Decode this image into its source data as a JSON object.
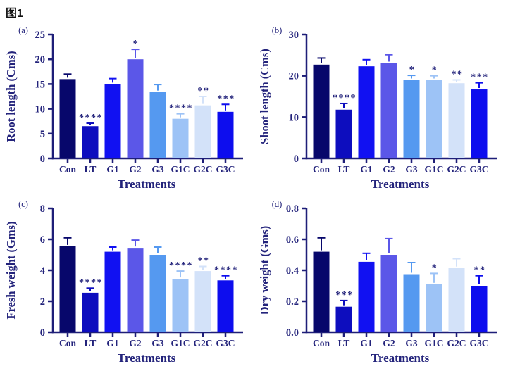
{
  "figure_label": "图1",
  "colors": {
    "text": "#23237b",
    "axis": "#1e1e78",
    "stars": "#23237b",
    "bars": [
      "#07076b",
      "#0d0dbe",
      "#1111f2",
      "#5b57e8",
      "#5599f0",
      "#9dc3f6",
      "#d3e2f9",
      "#0d0dee"
    ]
  },
  "chart_data": [
    {
      "type": "bar",
      "panel": "(a)",
      "ylabel": "Root length (Cms)",
      "xlabel": "Treatments",
      "ylim": [
        0,
        25
      ],
      "yticks": [
        "0",
        "5",
        "10",
        "15",
        "20",
        "25"
      ],
      "grid": false,
      "legend": "none",
      "categories": [
        "Con",
        "LT",
        "G1",
        "G2",
        "G3",
        "G1C",
        "G2C",
        "G3C"
      ],
      "values": [
        16,
        6.5,
        15,
        20,
        13.4,
        8,
        10.7,
        9.4
      ],
      "errors": [
        1,
        0.6,
        1.1,
        2,
        1.5,
        1,
        1.8,
        1.5
      ],
      "sig": [
        "",
        "****",
        "",
        "*",
        "",
        "****",
        "**",
        "***"
      ]
    },
    {
      "type": "bar",
      "panel": "(b)",
      "ylabel": "Shoot length (Cms)",
      "xlabel": "Treatments",
      "ylim": [
        0,
        30
      ],
      "yticks": [
        "0",
        "10",
        "20",
        "30"
      ],
      "grid": false,
      "legend": "none",
      "categories": [
        "Con",
        "LT",
        "G1",
        "G2",
        "G3",
        "G1C",
        "G2C",
        "G3C"
      ],
      "values": [
        22.7,
        11.8,
        22.3,
        23.1,
        19,
        19,
        18.2,
        16.7
      ],
      "errors": [
        1.6,
        1.5,
        1.6,
        2,
        1.1,
        1,
        0.8,
        1.6
      ],
      "sig": [
        "",
        "****",
        "",
        "",
        "*",
        "*",
        "**",
        "***"
      ]
    },
    {
      "type": "bar",
      "panel": "(c)",
      "ylabel": "Fresh weight (Gms)",
      "xlabel": "Treatments",
      "ylim": [
        0,
        8
      ],
      "yticks": [
        "0",
        "2",
        "4",
        "6",
        "8"
      ],
      "grid": false,
      "legend": "none",
      "categories": [
        "Con",
        "LT",
        "G1",
        "G2",
        "G3",
        "G1C",
        "G2C",
        "G3C"
      ],
      "values": [
        5.55,
        2.55,
        5.2,
        5.45,
        5.0,
        3.45,
        3.95,
        3.35
      ],
      "errors": [
        0.55,
        0.3,
        0.3,
        0.5,
        0.5,
        0.5,
        0.3,
        0.3
      ],
      "sig": [
        "",
        "****",
        "",
        "",
        "",
        "****",
        "**",
        "****"
      ]
    },
    {
      "type": "bar",
      "panel": "(d)",
      "ylabel": "Dry weight (Gms)",
      "xlabel": "Treatments",
      "ylim": [
        0,
        0.8
      ],
      "yticks": [
        "0.0",
        "0.2",
        "0.4",
        "0.6",
        "0.8"
      ],
      "grid": false,
      "legend": "none",
      "categories": [
        "Con",
        "LT",
        "G1",
        "G2",
        "G3",
        "G1C",
        "G2C",
        "G3C"
      ],
      "values": [
        0.52,
        0.165,
        0.455,
        0.5,
        0.375,
        0.31,
        0.415,
        0.3
      ],
      "errors": [
        0.09,
        0.04,
        0.055,
        0.105,
        0.075,
        0.07,
        0.06,
        0.065
      ],
      "sig": [
        "",
        "***",
        "",
        "",
        "",
        "*",
        "",
        "**"
      ]
    }
  ]
}
